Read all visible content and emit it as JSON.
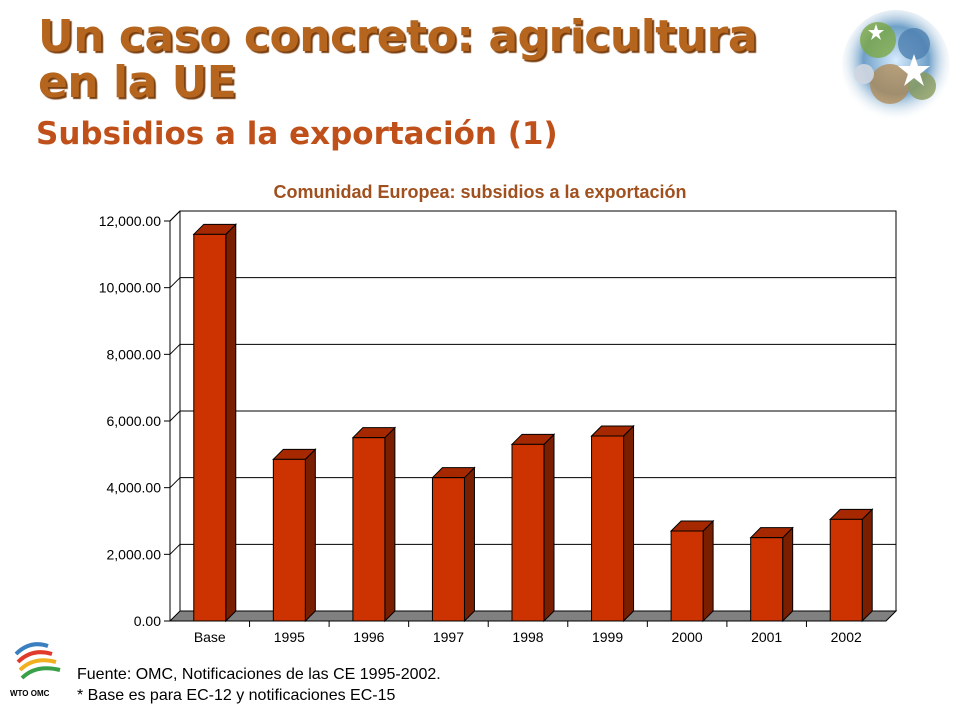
{
  "slide": {
    "title_line1": "Un caso concreto: agricultura",
    "title_line2": "en la UE",
    "subtitle": "Subsidios a la exportación (1)"
  },
  "chart_data": {
    "type": "bar",
    "title": "Comunidad Europea: subsidios a la exportación",
    "categories": [
      "Base",
      "1995",
      "1996",
      "1997",
      "1998",
      "1999",
      "2000",
      "2001",
      "2002"
    ],
    "values": [
      11600,
      4850,
      5500,
      4300,
      5300,
      5550,
      2700,
      2500,
      3050
    ],
    "xlabel": "",
    "ylabel": "",
    "ylim": [
      0,
      12000
    ],
    "yticks": [
      "0.00",
      "2,000.00",
      "4,000.00",
      "6,000.00",
      "8,000.00",
      "10,000.00",
      "12,000.00"
    ],
    "grid": true,
    "legend": "none",
    "bar_color": "#cc3300",
    "bar_side_color": "#7a1e00",
    "bar_top_color": "#a62800"
  },
  "footer": {
    "source": "Fuente: OMC, Notificaciones de las CE 1995-2002.",
    "note": "* Base es para EC-12 y notificaciones EC-15",
    "wto_label": "WTO OMC"
  },
  "icons": [
    "globe-collage-icon",
    "wto-logo-icon"
  ]
}
